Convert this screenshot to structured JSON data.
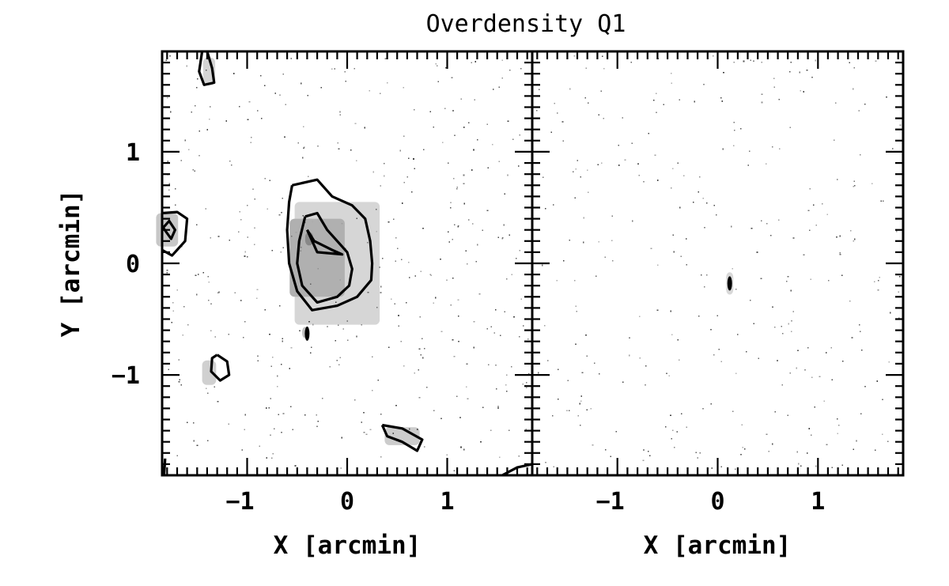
{
  "chart_data": {
    "type": "contour",
    "title": "Overdensity Q1",
    "panels": [
      {
        "name": "left-panel",
        "xlabel": "X [arcmin]",
        "ylabel": "Y [arcmin]",
        "xlim": [
          -1.85,
          1.85
        ],
        "ylim": [
          -1.9,
          1.9
        ],
        "xticks": [
          -1,
          0,
          1
        ],
        "yticks": [
          -1,
          0,
          1
        ],
        "xtick_labels": [
          "−1",
          "0",
          "1"
        ],
        "ytick_labels": [
          "−1",
          "0",
          "1"
        ],
        "grayscale_patches": [
          {
            "x": -0.1,
            "y": 0.0,
            "w": 0.85,
            "h": 1.1,
            "shade": "#d6d6d6"
          },
          {
            "x": -0.3,
            "y": 0.05,
            "w": 0.55,
            "h": 0.7,
            "shade": "#b0b0b0"
          },
          {
            "x": -0.38,
            "y": 0.22,
            "w": 0.08,
            "h": 0.12,
            "shade": "#888888"
          },
          {
            "x": -1.8,
            "y": 0.3,
            "w": 0.22,
            "h": 0.3,
            "shade": "#c8c8c8"
          },
          {
            "x": -1.38,
            "y": -0.98,
            "w": 0.14,
            "h": 0.22,
            "shade": "#d0d0d0"
          },
          {
            "x": -1.38,
            "y": 1.72,
            "w": 0.12,
            "h": 0.25,
            "shade": "#d4d4d4"
          },
          {
            "x": 0.55,
            "y": -1.55,
            "w": 0.35,
            "h": 0.16,
            "shade": "#cccccc"
          },
          {
            "x": -0.42,
            "y": -0.62,
            "w": 0.06,
            "h": 0.1,
            "shade": "#c0c0c0"
          }
        ],
        "contours": [
          {
            "level": 1,
            "points": [
              [
                -0.55,
                0.7
              ],
              [
                -0.3,
                0.75
              ],
              [
                -0.15,
                0.6
              ],
              [
                0.05,
                0.52
              ],
              [
                0.18,
                0.4
              ],
              [
                0.23,
                0.2
              ],
              [
                0.25,
                0.0
              ],
              [
                0.24,
                -0.15
              ],
              [
                0.1,
                -0.3
              ],
              [
                -0.1,
                -0.38
              ],
              [
                -0.35,
                -0.42
              ],
              [
                -0.5,
                -0.25
              ],
              [
                -0.58,
                0.0
              ],
              [
                -0.6,
                0.3
              ],
              [
                -0.58,
                0.55
              ],
              [
                -0.55,
                0.7
              ]
            ]
          },
          {
            "level": 2,
            "points": [
              [
                -0.42,
                0.42
              ],
              [
                -0.3,
                0.45
              ],
              [
                -0.2,
                0.3
              ],
              [
                -0.1,
                0.2
              ],
              [
                0.0,
                0.1
              ],
              [
                0.05,
                -0.05
              ],
              [
                0.02,
                -0.2
              ],
              [
                -0.1,
                -0.3
              ],
              [
                -0.3,
                -0.35
              ],
              [
                -0.45,
                -0.2
              ],
              [
                -0.5,
                0.0
              ],
              [
                -0.48,
                0.2
              ],
              [
                -0.42,
                0.42
              ]
            ]
          },
          {
            "level": 3,
            "points": [
              [
                -0.4,
                0.3
              ],
              [
                -0.3,
                0.1
              ],
              [
                -0.05,
                0.08
              ],
              [
                -0.15,
                0.12
              ],
              [
                -0.33,
                0.2
              ],
              [
                -0.4,
                0.3
              ]
            ]
          },
          {
            "level": 1,
            "points": [
              [
                -1.85,
                0.45
              ],
              [
                -1.7,
                0.46
              ],
              [
                -1.6,
                0.4
              ],
              [
                -1.62,
                0.2
              ],
              [
                -1.75,
                0.07
              ],
              [
                -1.85,
                0.12
              ]
            ]
          },
          {
            "level": 2,
            "points": [
              [
                -1.84,
                0.32
              ],
              [
                -1.78,
                0.38
              ],
              [
                -1.72,
                0.3
              ],
              [
                -1.76,
                0.22
              ],
              [
                -1.84,
                0.32
              ]
            ]
          },
          {
            "level": 1,
            "points": [
              [
                -1.4,
                1.9
              ],
              [
                -1.35,
                1.75
              ],
              [
                -1.33,
                1.62
              ],
              [
                -1.43,
                1.6
              ],
              [
                -1.48,
                1.72
              ],
              [
                -1.45,
                1.9
              ]
            ]
          },
          {
            "level": 1,
            "points": [
              [
                -1.3,
                -0.82
              ],
              [
                -1.2,
                -0.88
              ],
              [
                -1.18,
                -1.0
              ],
              [
                -1.27,
                -1.05
              ],
              [
                -1.36,
                -0.97
              ],
              [
                -1.35,
                -0.85
              ],
              [
                -1.3,
                -0.82
              ]
            ]
          },
          {
            "level": 1,
            "points": [
              [
                0.35,
                -1.45
              ],
              [
                0.55,
                -1.48
              ],
              [
                0.75,
                -1.58
              ],
              [
                0.7,
                -1.68
              ],
              [
                0.55,
                -1.6
              ],
              [
                0.4,
                -1.55
              ],
              [
                0.35,
                -1.45
              ]
            ]
          },
          {
            "level": 1,
            "points": [
              [
                1.55,
                -1.9
              ],
              [
                1.7,
                -1.83
              ],
              [
                1.85,
                -1.8
              ]
            ]
          },
          {
            "level": 1,
            "points": [
              [
                -1.83,
                -1.9
              ],
              [
                -1.82,
                -1.75
              ]
            ]
          }
        ],
        "spots": [
          [
            -0.4,
            -0.63
          ]
        ]
      },
      {
        "name": "right-panel",
        "xlabel": "X [arcmin]",
        "ylabel": "",
        "xlim": [
          -1.85,
          1.85
        ],
        "ylim": [
          -1.9,
          1.9
        ],
        "xticks": [
          -1,
          0,
          1
        ],
        "yticks": [
          -1,
          0,
          1
        ],
        "xtick_labels": [
          "−1",
          "0",
          "1"
        ],
        "ytick_labels": [],
        "grayscale_patches": [
          {
            "x": 0.12,
            "y": -0.18,
            "w": 0.07,
            "h": 0.2,
            "shade": "#d8d8d8"
          }
        ],
        "contours": [],
        "spots": [
          [
            0.12,
            -0.18
          ]
        ]
      }
    ],
    "grid": false,
    "legend": "none"
  }
}
